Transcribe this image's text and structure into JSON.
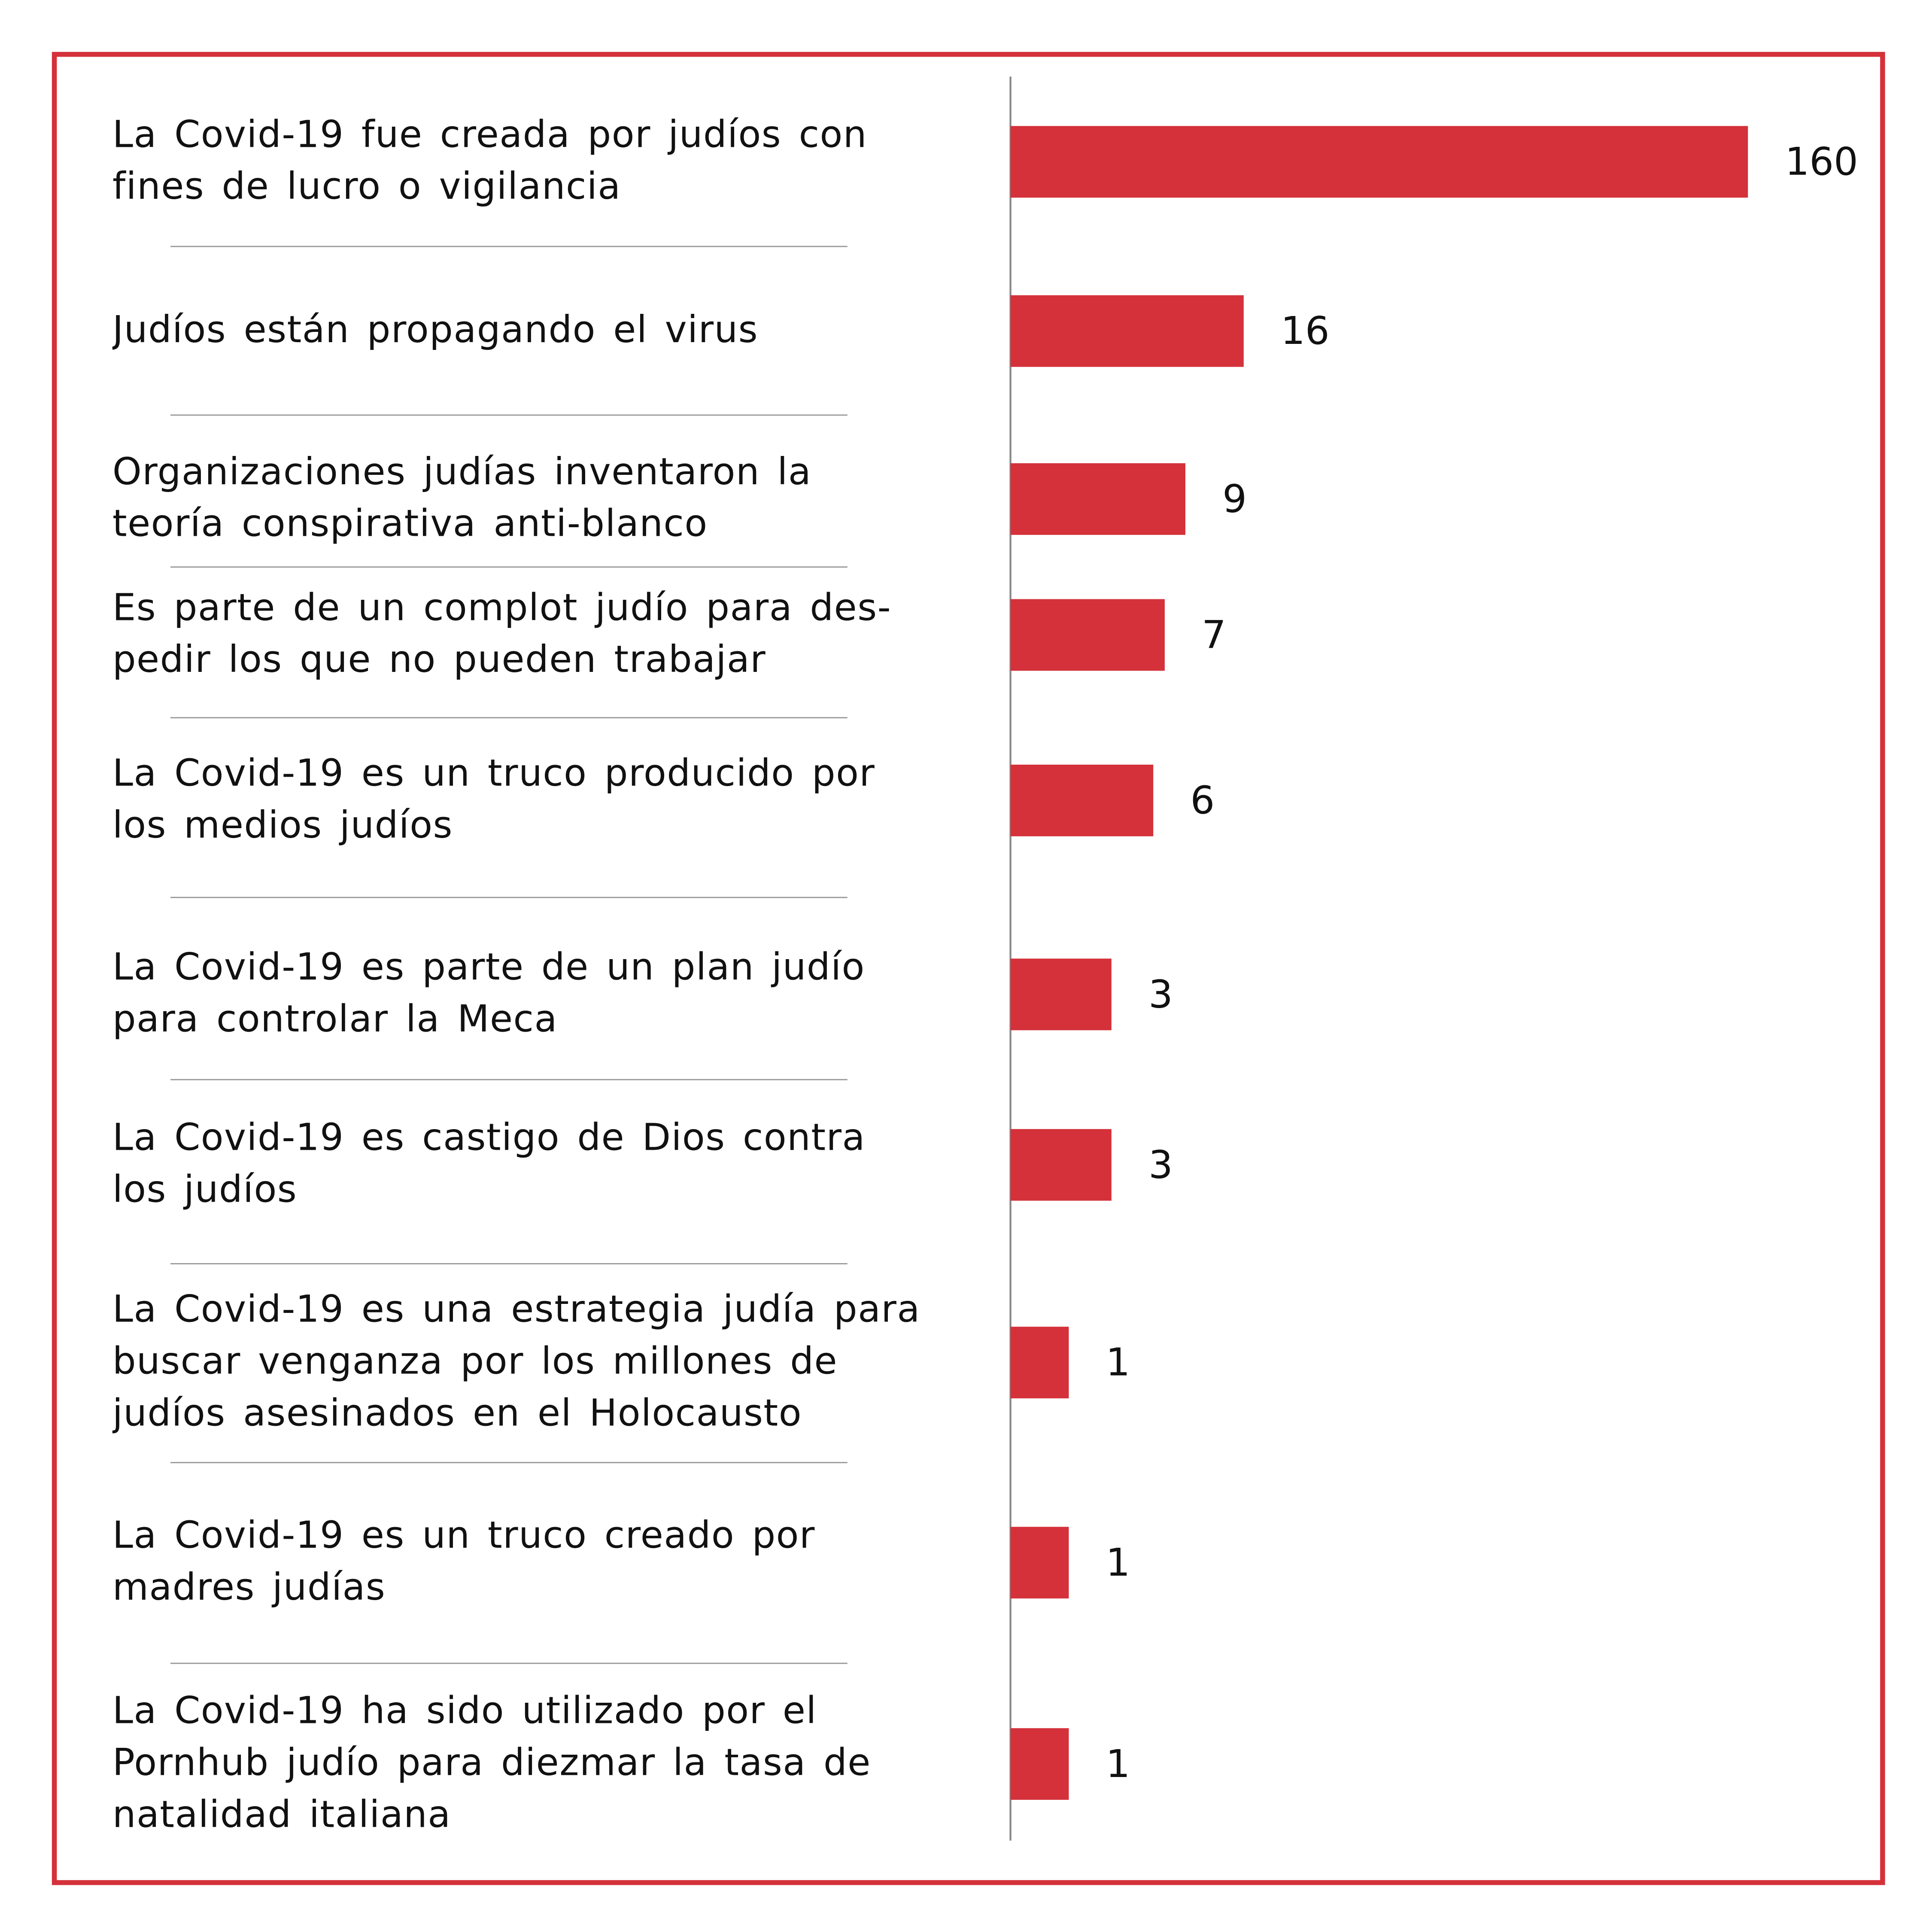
{
  "chart_data": {
    "type": "bar",
    "orientation": "horizontal",
    "categories": [
      "La Covid-19 fue creada por judíos con\nfines de lucro o vigilancia",
      "Judíos están propagando el virus",
      "Organizaciones judías inventaron la\nteoría conspirativa anti-blanco",
      "Es parte de un complot judío para des-\npedir los que no pueden trabajar",
      "La Covid-19 es un truco producido por\nlos medios judíos",
      "La Covid-19 es parte de un plan judío\npara controlar la Meca",
      "La Covid-19 es castigo de Dios contra\nlos judíos",
      "La Covid-19 es una estrategia judía para\nbuscar venganza por los millones de\njudíos asesinados en el Holocausto",
      "La Covid-19 es un truco creado por\nmadres judías",
      "La Covid-19 ha sido utilizado por el\nPornhub judío para diezmar la tasa de\nnatalidad italiana"
    ],
    "values": [
      160,
      16,
      9,
      7,
      6,
      3,
      3,
      1,
      1,
      1
    ],
    "color": "#d4313a",
    "xscale": "sqrt",
    "xlim": [
      0,
      160
    ]
  }
}
